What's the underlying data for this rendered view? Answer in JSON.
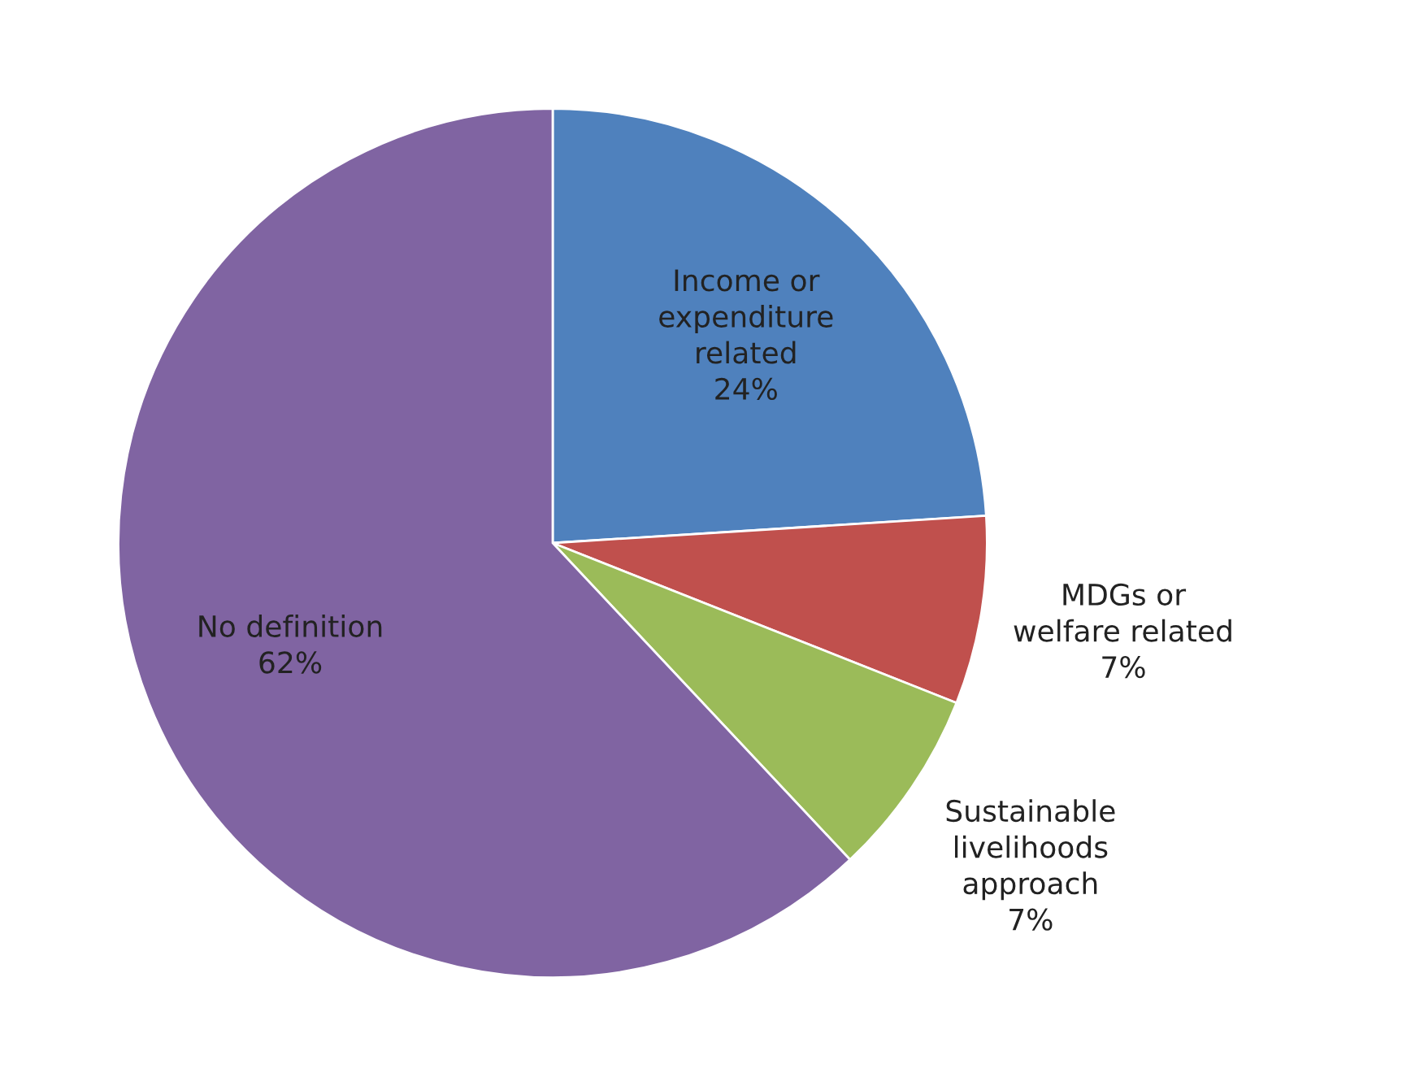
{
  "chart_data": {
    "type": "pie",
    "categories": [
      "Income or\nexpenditure\nrelated",
      "MDGs or\nwelfare related",
      "Sustainable\nlivelihoods\napproach",
      "No definition"
    ],
    "values": [
      24,
      7,
      7,
      62
    ],
    "colors": [
      "#4f81bd",
      "#c0504d",
      "#9bbb59",
      "#8064a2"
    ],
    "value_labels": [
      "24%",
      "7%",
      "7%",
      "62%"
    ],
    "legend": false
  }
}
